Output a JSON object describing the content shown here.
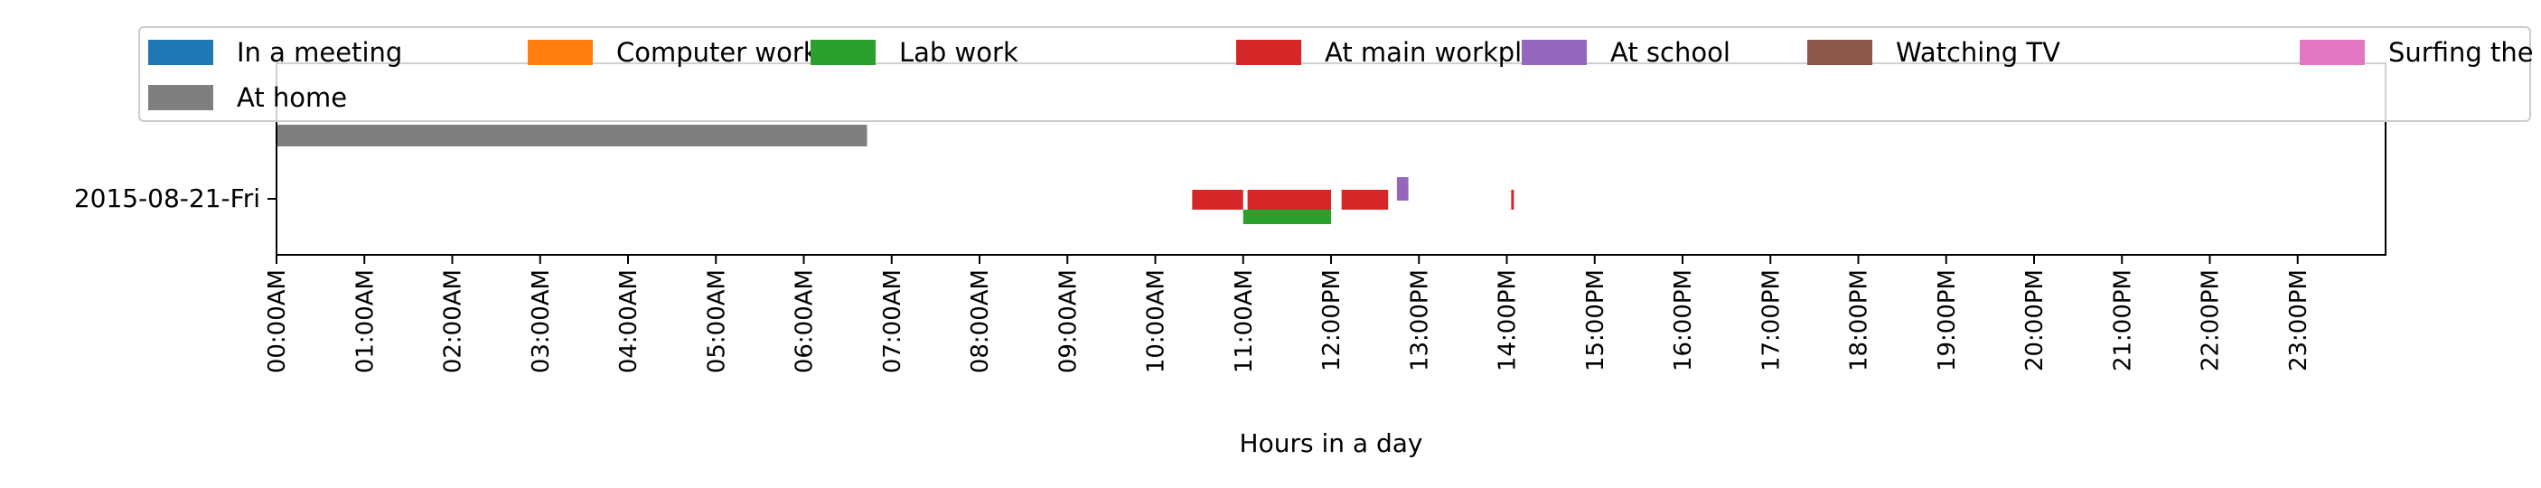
{
  "chart_data": {
    "type": "bar",
    "orientation": "horizontal-timeline",
    "xlabel": "Hours in a day",
    "ylabel": "",
    "title": "",
    "xlim": [
      0,
      24
    ],
    "x_ticks": [
      "00:00AM",
      "01:00AM",
      "02:00AM",
      "03:00AM",
      "04:00AM",
      "05:00AM",
      "06:00AM",
      "07:00AM",
      "08:00AM",
      "09:00AM",
      "10:00AM",
      "11:00AM",
      "12:00PM",
      "13:00PM",
      "14:00PM",
      "15:00PM",
      "16:00PM",
      "17:00PM",
      "18:00PM",
      "19:00PM",
      "20:00PM",
      "21:00PM",
      "22:00PM",
      "23:00PM"
    ],
    "categories": [
      "2015-08-21-Fri"
    ],
    "grid": false,
    "legend_position": "top",
    "series": [
      {
        "name": "In a meeting",
        "color": "#1f77b4",
        "segments": []
      },
      {
        "name": "Computer work",
        "color": "#ff7f0e",
        "segments": []
      },
      {
        "name": "Lab work",
        "color": "#2ca02c",
        "segments": [
          {
            "start": 11.0,
            "end": 12.0
          }
        ]
      },
      {
        "name": "At main workplace",
        "color": "#d62728",
        "segments": [
          {
            "start": 10.42,
            "end": 11.0
          },
          {
            "start": 11.05,
            "end": 12.0
          },
          {
            "start": 12.12,
            "end": 12.65
          },
          {
            "start": 14.05,
            "end": 14.08
          }
        ]
      },
      {
        "name": "At school",
        "color": "#9467bd",
        "segments": [
          {
            "start": 12.75,
            "end": 12.88
          }
        ]
      },
      {
        "name": "Watching TV",
        "color": "#8c564b",
        "segments": []
      },
      {
        "name": "Surfing the internet",
        "color": "#e377c2",
        "segments": []
      },
      {
        "name": "At home",
        "color": "#7f7f7f",
        "segments": [
          {
            "start": 0.0,
            "end": 6.72
          }
        ]
      }
    ]
  }
}
